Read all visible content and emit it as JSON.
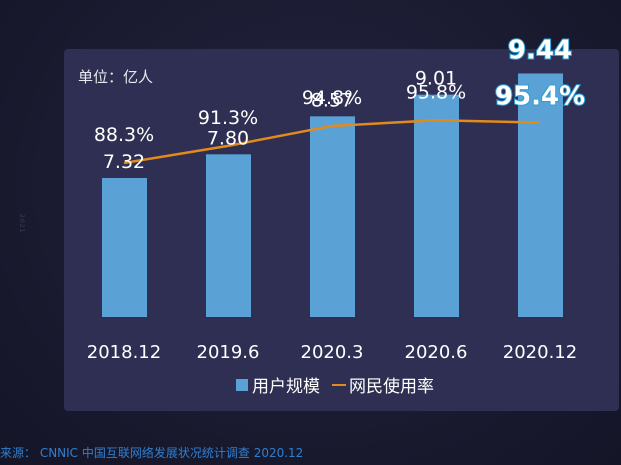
{
  "unit_label": "单位：亿人",
  "side_mark": "2021",
  "source_text": "来源： CNNIC 中国互联网络发展状况统计调查 2020.12",
  "colors": {
    "bar": "#5aa2d6",
    "line": "#e38a1c",
    "highlight_stroke": "#2a9fd6"
  },
  "chart_data": {
    "type": "bar",
    "categories": [
      "2018.12",
      "2019.6",
      "2020.3",
      "2020.6",
      "2020.12"
    ],
    "series": [
      {
        "name": "用户规模",
        "type": "bar",
        "values": [
          7.32,
          7.8,
          8.57,
          9.01,
          9.44
        ],
        "labels": [
          "7.32",
          "7.80",
          "8.57",
          "9.01",
          "9.44"
        ]
      },
      {
        "name": "网民使用率",
        "type": "line",
        "values": [
          88.3,
          91.3,
          94.8,
          95.8,
          95.4
        ],
        "labels": [
          "88.3%",
          "91.3%",
          "94.8%",
          "95.8%",
          "95.4%"
        ]
      }
    ],
    "highlight_index": 4,
    "legend_position": "bottom",
    "grid": false
  }
}
